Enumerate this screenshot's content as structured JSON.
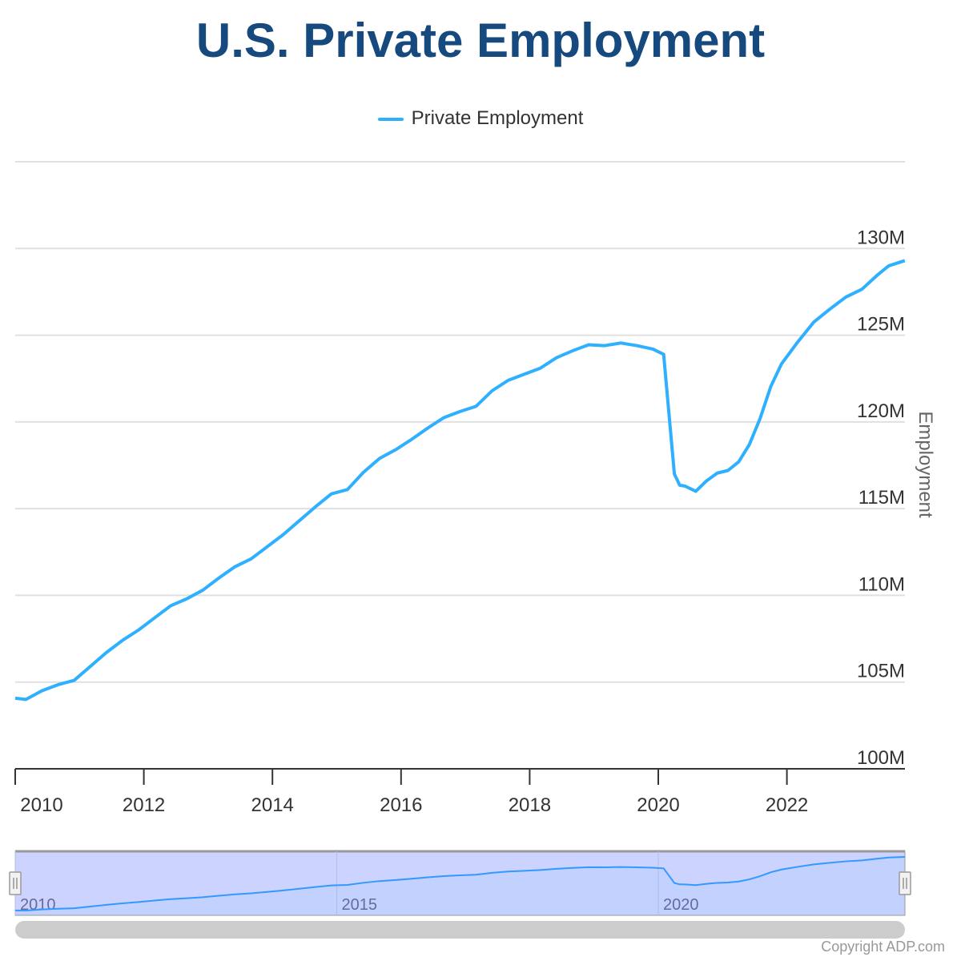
{
  "chart_data": {
    "type": "line",
    "title": "U.S. Private Employment",
    "xlabel": "",
    "ylabel": "Employment",
    "legend": {
      "position": "top",
      "entries": [
        "Private Employment"
      ]
    },
    "grid": true,
    "x_ticks": [
      "2010",
      "2012",
      "2014",
      "2016",
      "2018",
      "2020",
      "2022"
    ],
    "y_ticks": [
      "100M",
      "105M",
      "110M",
      "115M",
      "120M",
      "125M",
      "130M"
    ],
    "ylim": [
      100,
      135
    ],
    "y_unit": "millions",
    "navigator_ticks": [
      "2010",
      "2015",
      "2020"
    ],
    "series": [
      {
        "name": "Private Employment",
        "color": "#2eb0ff",
        "points": [
          [
            "2010-01",
            104.07
          ],
          [
            "2010-03",
            104.0
          ],
          [
            "2010-06",
            104.5
          ],
          [
            "2010-09",
            104.85
          ],
          [
            "2010-12",
            105.1
          ],
          [
            "2011-03",
            105.9
          ],
          [
            "2011-06",
            106.7
          ],
          [
            "2011-09",
            107.4
          ],
          [
            "2011-12",
            108.0
          ],
          [
            "2012-03",
            108.7
          ],
          [
            "2012-06",
            109.4
          ],
          [
            "2012-09",
            109.8
          ],
          [
            "2012-12",
            110.3
          ],
          [
            "2013-03",
            111.0
          ],
          [
            "2013-06",
            111.65
          ],
          [
            "2013-09",
            112.1
          ],
          [
            "2013-12",
            112.8
          ],
          [
            "2014-03",
            113.5
          ],
          [
            "2014-06",
            114.3
          ],
          [
            "2014-09",
            115.1
          ],
          [
            "2014-12",
            115.85
          ],
          [
            "2015-03",
            116.1
          ],
          [
            "2015-06",
            117.1
          ],
          [
            "2015-09",
            117.9
          ],
          [
            "2015-12",
            118.4
          ],
          [
            "2016-03",
            119.0
          ],
          [
            "2016-06",
            119.65
          ],
          [
            "2016-09",
            120.25
          ],
          [
            "2016-12",
            120.6
          ],
          [
            "2017-03",
            120.9
          ],
          [
            "2017-06",
            121.8
          ],
          [
            "2017-09",
            122.4
          ],
          [
            "2017-12",
            122.75
          ],
          [
            "2018-03",
            123.1
          ],
          [
            "2018-06",
            123.7
          ],
          [
            "2018-09",
            124.1
          ],
          [
            "2018-12",
            124.45
          ],
          [
            "2019-03",
            124.4
          ],
          [
            "2019-06",
            124.55
          ],
          [
            "2019-09",
            124.4
          ],
          [
            "2019-12",
            124.2
          ],
          [
            "2020-02",
            123.9
          ],
          [
            "2020-04",
            117.0
          ],
          [
            "2020-05",
            116.35
          ],
          [
            "2020-06",
            116.3
          ],
          [
            "2020-08",
            116.0
          ],
          [
            "2020-10",
            116.6
          ],
          [
            "2020-12",
            117.05
          ],
          [
            "2021-02",
            117.2
          ],
          [
            "2021-04",
            117.7
          ],
          [
            "2021-06",
            118.7
          ],
          [
            "2021-08",
            120.2
          ],
          [
            "2021-10",
            122.05
          ],
          [
            "2021-12",
            123.35
          ],
          [
            "2022-03",
            124.6
          ],
          [
            "2022-06",
            125.75
          ],
          [
            "2022-09",
            126.5
          ],
          [
            "2022-12",
            127.2
          ],
          [
            "2023-03",
            127.65
          ],
          [
            "2023-06",
            128.5
          ],
          [
            "2023-08",
            129.0
          ],
          [
            "2023-11",
            129.3
          ]
        ]
      }
    ]
  },
  "copyright": "Copyright ADP.com"
}
